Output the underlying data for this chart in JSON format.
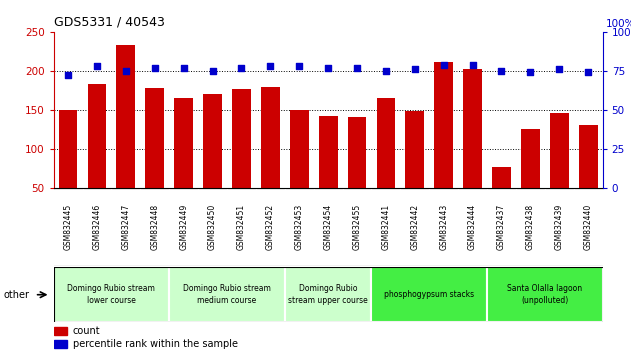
{
  "title": "GDS5331 / 40543",
  "samples": [
    "GSM832445",
    "GSM832446",
    "GSM832447",
    "GSM832448",
    "GSM832449",
    "GSM832450",
    "GSM832451",
    "GSM832452",
    "GSM832453",
    "GSM832454",
    "GSM832455",
    "GSM832441",
    "GSM832442",
    "GSM832443",
    "GSM832444",
    "GSM832437",
    "GSM832438",
    "GSM832439",
    "GSM832440"
  ],
  "counts": [
    150,
    183,
    233,
    178,
    165,
    170,
    177,
    179,
    150,
    142,
    141,
    165,
    148,
    211,
    202,
    77,
    125,
    146,
    130
  ],
  "percentiles": [
    72,
    78,
    75,
    77,
    77,
    75,
    77,
    78,
    78,
    77,
    77,
    75,
    76,
    79,
    79,
    75,
    74,
    76,
    74
  ],
  "bar_color": "#cc0000",
  "dot_color": "#0000cc",
  "groups": [
    {
      "label": "Domingo Rubio stream\nlower course",
      "start": 0,
      "end": 4,
      "color": "#ccffcc"
    },
    {
      "label": "Domingo Rubio stream\nmedium course",
      "start": 4,
      "end": 8,
      "color": "#ccffcc"
    },
    {
      "label": "Domingo Rubio\nstream upper course",
      "start": 8,
      "end": 11,
      "color": "#ccffcc"
    },
    {
      "label": "phosphogypsum stacks",
      "start": 11,
      "end": 15,
      "color": "#44ee44"
    },
    {
      "label": "Santa Olalla lagoon\n(unpolluted)",
      "start": 15,
      "end": 19,
      "color": "#44ee44"
    }
  ],
  "ylim_left": [
    50,
    250
  ],
  "ylim_right": [
    0,
    100
  ],
  "yticks_left": [
    50,
    100,
    150,
    200,
    250
  ],
  "yticks_right": [
    0,
    25,
    50,
    75,
    100
  ],
  "left_axis_color": "#cc0000",
  "right_axis_color": "#0000cc",
  "legend_count_label": "count",
  "legend_pct_label": "percentile rank within the sample",
  "other_label": "other",
  "sample_bg_color": "#d0d0d0",
  "grid_lines": [
    100,
    150,
    200
  ],
  "pct_label": "100%"
}
